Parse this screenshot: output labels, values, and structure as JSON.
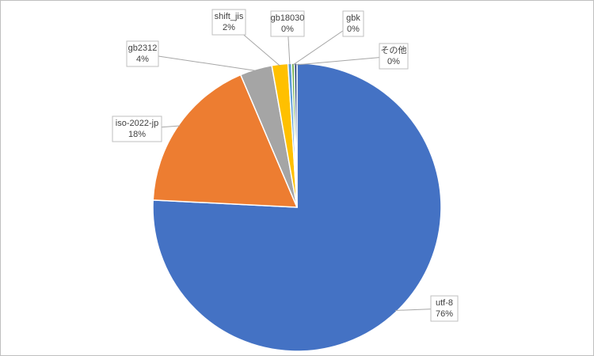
{
  "chart_data": {
    "type": "pie",
    "categories": [
      "utf-8",
      "iso-2022-jp",
      "gb2312",
      "shift_jis",
      "gb18030",
      "gbk",
      "その他"
    ],
    "values": [
      75.8,
      17.8,
      3.6,
      1.8,
      0.4,
      0.3,
      0.3
    ],
    "value_labels": [
      "76%",
      "18%",
      "4%",
      "2%",
      "0%",
      "0%",
      "0%"
    ],
    "colors": [
      "#4472c4",
      "#ed7d31",
      "#a5a5a5",
      "#ffc000",
      "#5b9bd5",
      "#70ad47",
      "#264478"
    ]
  }
}
